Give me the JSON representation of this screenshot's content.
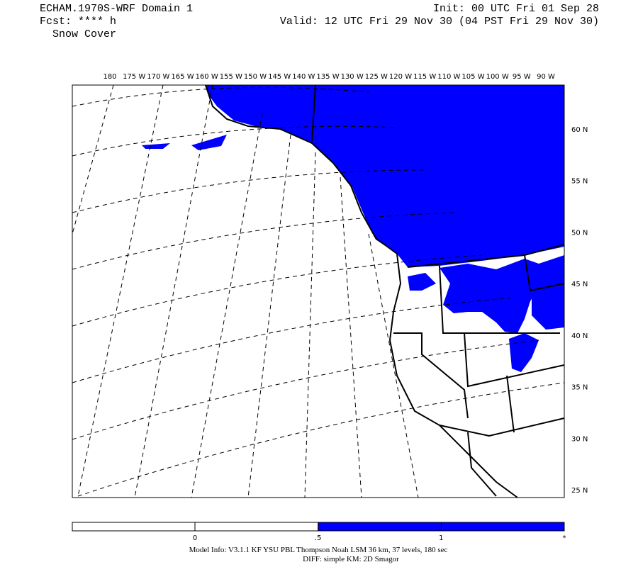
{
  "header": {
    "left": [
      "ECHAM.1970S-WRF Domain 1",
      "Fcst: **** h",
      "Snow Cover"
    ],
    "right": [
      "Init: 00 UTC Fri 01 Sep 28",
      "Valid: 12 UTC Fri 29 Nov 30 (04 PST Fri 29 Nov 30)"
    ]
  },
  "map": {
    "lon_labels": [
      "180",
      "175 W",
      "170 W",
      "165 W",
      "160 W",
      "155 W",
      "150 W",
      "145 W",
      "140 W",
      "135 W",
      "130 W",
      "125 W",
      "120 W",
      "115 W",
      "110 W",
      "105 W",
      "100 W",
      "95 W",
      "90 W"
    ],
    "lat_labels": [
      "60 N",
      "55 N",
      "50 N",
      "45 N",
      "40 N",
      "35 N",
      "30 N",
      "25 N"
    ]
  },
  "colorbar": {
    "labels": [
      "0",
      ".5",
      "1",
      "*"
    ]
  },
  "footer": [
    "Model Info: V3.1.1    KF    YSU PBL  Thompson    Noah LSM  36 km,   37 levels,  180 sec",
    "DIFF: simple KM: 2D Smagor"
  ]
}
